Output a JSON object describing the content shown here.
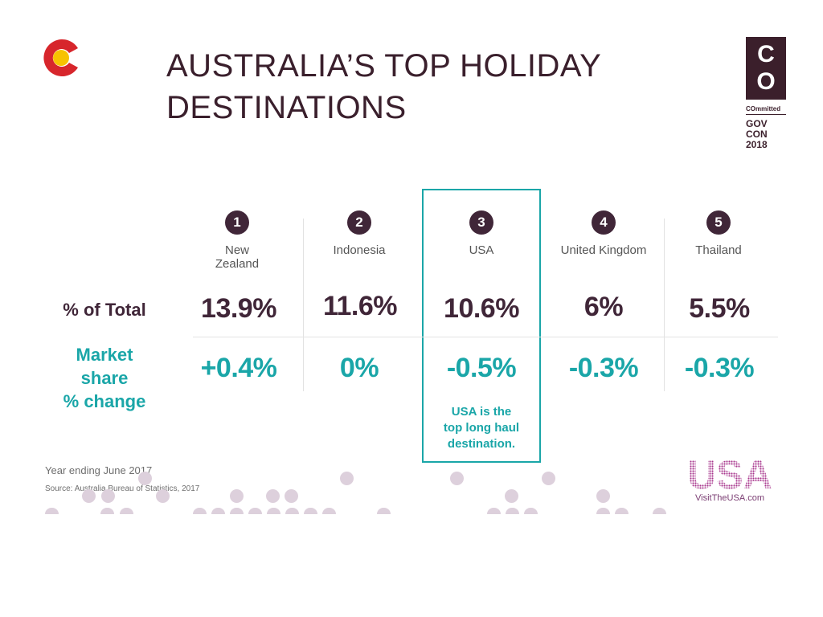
{
  "slide": {
    "title_line1": "AUSTRALIA’S TOP HOLIDAY",
    "title_line2": "DESTINATIONS"
  },
  "gov_badge": {
    "letters": [
      "C",
      "O"
    ],
    "tagline": "COmmitted",
    "event_lines": [
      "GOV",
      "CON",
      "2018"
    ]
  },
  "table": {
    "columns": [
      {
        "rank": "1",
        "name_lines": [
          "New",
          "Zealand"
        ],
        "share_of_total": "13.9%",
        "market_share_change": "+0.4%"
      },
      {
        "rank": "2",
        "name_lines": [
          "Indonesia"
        ],
        "share_of_total": "11.6%",
        "market_share_change": "0%"
      },
      {
        "rank": "3",
        "name_lines": [
          "USA"
        ],
        "share_of_total": "10.6%",
        "market_share_change": "-0.5%",
        "highlighted": true
      },
      {
        "rank": "4",
        "name_lines": [
          "United Kingdom"
        ],
        "share_of_total": "6%",
        "market_share_change": "-0.3%"
      },
      {
        "rank": "5",
        "name_lines": [
          "Thailand"
        ],
        "share_of_total": "5.5%",
        "market_share_change": "-0.3%"
      }
    ],
    "row_labels": {
      "share_of_total": "% of Total",
      "market_share_change_lines": [
        "Market",
        "share",
        "% change"
      ]
    },
    "callout_lines": [
      "USA is the",
      "top long haul",
      "destination."
    ]
  },
  "footnotes": {
    "period": "Year ending June 2017",
    "source": "Source: Australia Bureau of Statistics, 2017"
  },
  "usa_logo": {
    "wordmark": "USA",
    "url": "VisitTheUSA.com"
  },
  "colors": {
    "plum": "#402638",
    "teal": "#1aa6a8",
    "dot": "#ddd0dc",
    "badge": "#3b1f2b",
    "logo_red": "#d7262c",
    "logo_yellow": "#f7c200"
  }
}
